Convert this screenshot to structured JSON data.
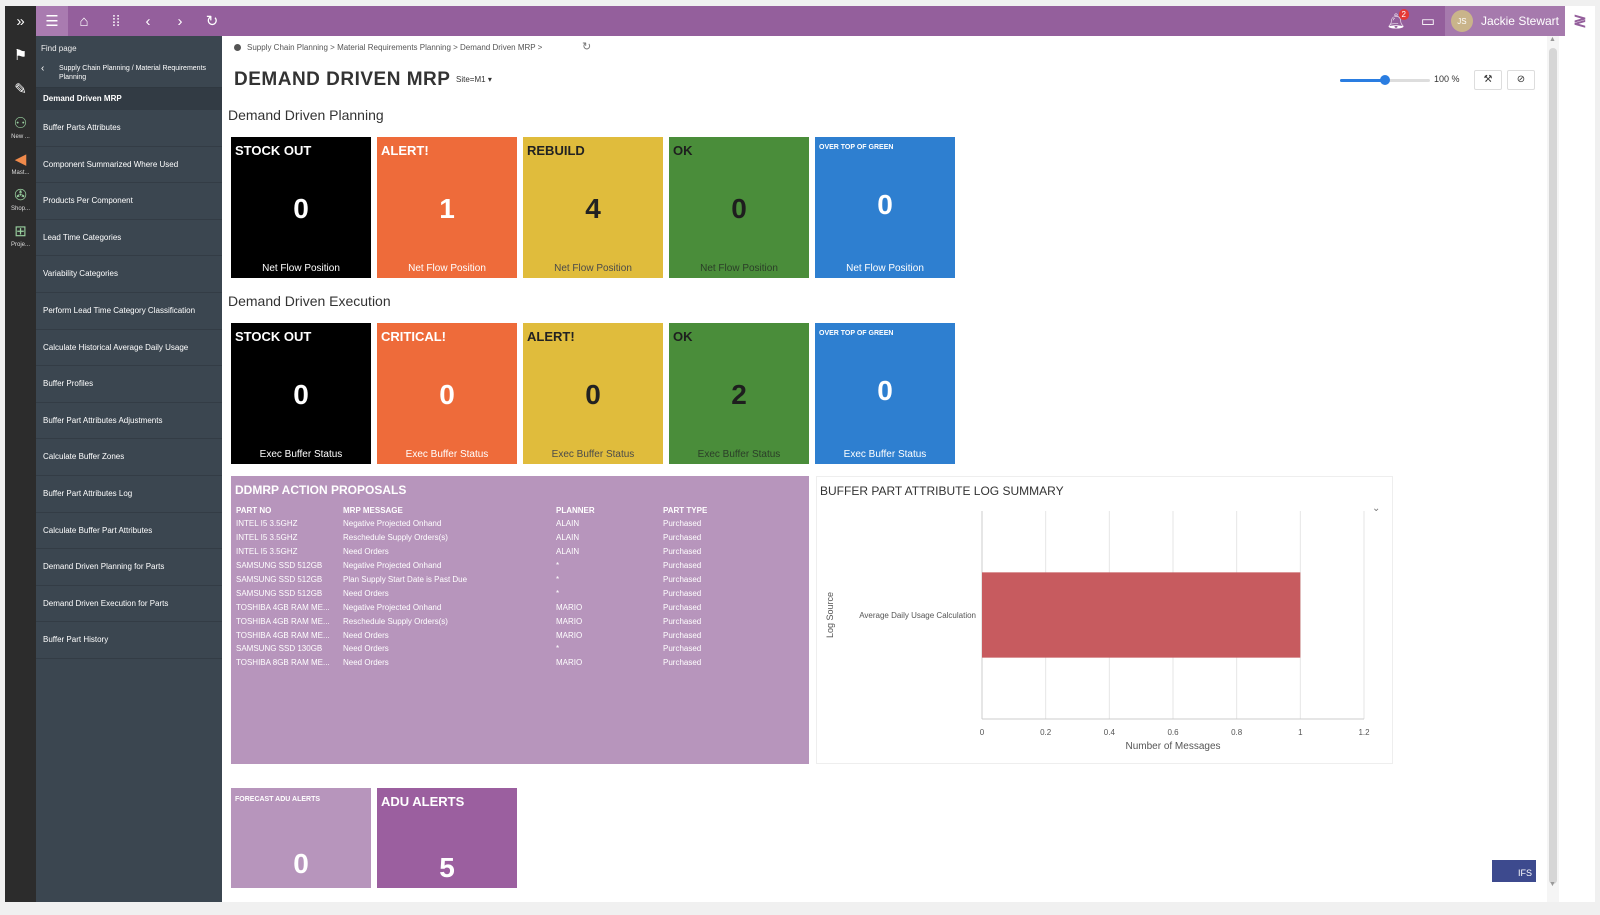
{
  "topbar": {
    "user_name": "Jackie Stewart",
    "user_initials": "JS",
    "notification_count": "2"
  },
  "rail": {
    "items": [
      {
        "icon": "people-icon",
        "caption": "New ..."
      },
      {
        "icon": "megaphone-icon",
        "caption": "Mast..."
      },
      {
        "icon": "wrench-icon",
        "caption": "Shop..."
      },
      {
        "icon": "hierarchy-icon",
        "caption": "Proje..."
      }
    ]
  },
  "nav": {
    "find_page": "Find page",
    "parent_path": "Supply Chain Planning / Material Requirements Planning",
    "current": "Demand Driven MRP",
    "items": [
      "Buffer Parts Attributes",
      "Component Summarized Where Used",
      "Products Per Component",
      "Lead Time Categories",
      "Variability Categories",
      "Perform Lead Time Category Classification",
      "Calculate Historical Average Daily Usage",
      "Buffer Profiles",
      "Buffer Part Attributes Adjustments",
      "Calculate Buffer Zones",
      "Buffer Part Attributes Log",
      "Calculate Buffer Part Attributes",
      "Demand Driven Planning for Parts",
      "Demand Driven Execution for Parts",
      "Buffer Part History"
    ]
  },
  "header": {
    "breadcrumb": "Supply Chain Planning > Material Requirements Planning > Demand Driven MRP >",
    "title": "DEMAND DRIVEN MRP",
    "site_selector": "Site=M1",
    "zoom_label": "100 %",
    "zoom_fraction": 0.5
  },
  "planning": {
    "section_title": "Demand Driven Planning",
    "tiles": [
      {
        "label": "STOCK OUT",
        "value": "0",
        "footer": "Net Flow Position",
        "color": "#000000"
      },
      {
        "label": "ALERT!",
        "value": "1",
        "footer": "Net Flow Position",
        "color": "#ee6b3a"
      },
      {
        "label": "REBUILD",
        "value": "4",
        "footer": "Net Flow Position",
        "color": "#e0bc3c"
      },
      {
        "label": "OK",
        "value": "0",
        "footer": "Net Flow Position",
        "color": "#4a8d3a"
      },
      {
        "label": "OVER TOP OF GREEN",
        "value": "0",
        "footer": "Net Flow Position",
        "color": "#2e7fd0"
      }
    ]
  },
  "execution": {
    "section_title": "Demand Driven Execution",
    "tiles": [
      {
        "label": "STOCK OUT",
        "value": "0",
        "footer": "Exec Buffer Status",
        "color": "#000000"
      },
      {
        "label": "CRITICAL!",
        "value": "0",
        "footer": "Exec Buffer Status",
        "color": "#ee6b3a"
      },
      {
        "label": "ALERT!",
        "value": "0",
        "footer": "Exec Buffer Status",
        "color": "#e0bc3c"
      },
      {
        "label": "OK",
        "value": "2",
        "footer": "Exec Buffer Status",
        "color": "#4a8d3a"
      },
      {
        "label": "OVER TOP OF GREEN",
        "value": "0",
        "footer": "Exec Buffer Status",
        "color": "#2e7fd0"
      }
    ]
  },
  "proposals": {
    "title": "DDMRP ACTION PROPOSALS",
    "columns": [
      "PART NO",
      "MRP MESSAGE",
      "PLANNER",
      "PART TYPE"
    ],
    "rows": [
      [
        "INTEL I5 3.5GHZ",
        "Negative Projected Onhand",
        "ALAIN",
        "Purchased"
      ],
      [
        "INTEL I5 3.5GHZ",
        "Reschedule Supply Orders(s)",
        "ALAIN",
        "Purchased"
      ],
      [
        "INTEL I5 3.5GHZ",
        "Need Orders",
        "ALAIN",
        "Purchased"
      ],
      [
        "SAMSUNG SSD 512GB",
        "Negative Projected Onhand",
        "*",
        "Purchased"
      ],
      [
        "SAMSUNG SSD 512GB",
        "Plan Supply Start Date is Past Due",
        "*",
        "Purchased"
      ],
      [
        "SAMSUNG SSD 512GB",
        "Need Orders",
        "*",
        "Purchased"
      ],
      [
        "TOSHIBA 4GB RAM ME...",
        "Negative Projected Onhand",
        "MARIO",
        "Purchased"
      ],
      [
        "TOSHIBA 4GB RAM ME...",
        "Reschedule Supply Orders(s)",
        "MARIO",
        "Purchased"
      ],
      [
        "TOSHIBA 4GB RAM ME...",
        "Need Orders",
        "MARIO",
        "Purchased"
      ],
      [
        "SAMSUNG SSD 130GB",
        "Need Orders",
        "*",
        "Purchased"
      ],
      [
        "TOSHIBA 8GB RAM ME...",
        "Need Orders",
        "MARIO",
        "Purchased"
      ]
    ]
  },
  "chart_data": {
    "type": "bar",
    "orientation": "horizontal",
    "title": "BUFFER PART ATTRIBUTE LOG SUMMARY",
    "categories": [
      "Average Daily Usage Calculation"
    ],
    "values": [
      1
    ],
    "xlabel": "Number of Messages",
    "ylabel": "Log Source",
    "xlim": [
      0,
      1.2
    ],
    "xticks": [
      "0",
      "0.2",
      "0.4",
      "0.6",
      "0.8",
      "1",
      "1.2"
    ],
    "grid": true,
    "bar_color": "#c75b5f"
  },
  "bottom_tiles": [
    {
      "label": "FORECAST ADU ALERTS",
      "value": "0",
      "color": "#b795bc"
    },
    {
      "label": "ADU ALERTS",
      "value": "5",
      "color": "#9b5f9f"
    }
  ]
}
